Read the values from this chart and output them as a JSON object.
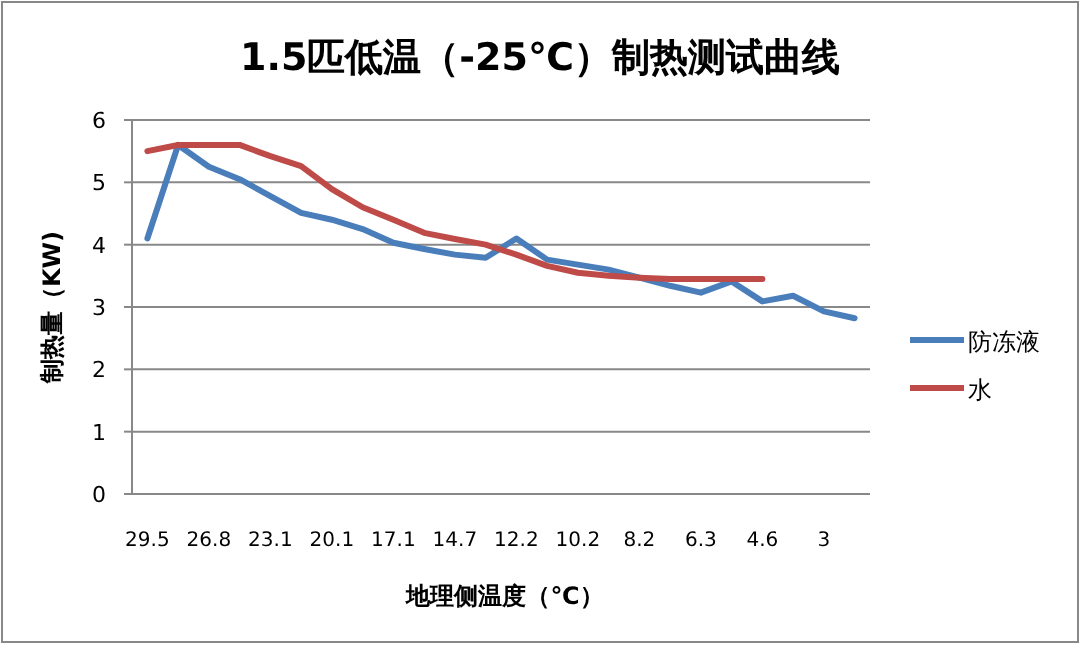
{
  "chart_data": {
    "type": "line",
    "title": "1.5匹低温（-25℃）制热测试曲线",
    "xlabel": "地理侧温度（℃）",
    "ylabel": "制热量（KW)",
    "categories": [
      "29.5",
      null,
      "26.8",
      null,
      "23.1",
      null,
      "20.1",
      null,
      "17.1",
      null,
      "14.7",
      null,
      "12.2",
      null,
      "10.2",
      null,
      "8.2",
      null,
      "6.3",
      null,
      "4.6",
      null,
      "3",
      null
    ],
    "series": [
      {
        "name": "防冻液",
        "color": "#4a7ebb",
        "values": [
          4.1,
          5.6,
          5.25,
          5.05,
          4.78,
          4.51,
          4.4,
          4.25,
          4.03,
          3.93,
          3.84,
          3.79,
          4.1,
          3.76,
          3.68,
          3.6,
          3.47,
          3.34,
          3.23,
          3.41,
          3.09,
          3.18,
          2.93,
          2.82
        ]
      },
      {
        "name": "水",
        "color": "#be4b48",
        "values": [
          5.5,
          5.6,
          5.6,
          5.6,
          5.42,
          5.26,
          4.89,
          4.6,
          4.4,
          4.19,
          4.09,
          4.0,
          3.84,
          3.66,
          3.55,
          3.5,
          3.47,
          3.45,
          3.45,
          3.45,
          3.45,
          null,
          null,
          null
        ]
      }
    ],
    "ylim": [
      0,
      6
    ],
    "yticks": [
      0,
      1,
      2,
      3,
      4,
      5,
      6
    ],
    "grid": "y",
    "legend": "right",
    "line_style": "solid",
    "marker": "none"
  }
}
